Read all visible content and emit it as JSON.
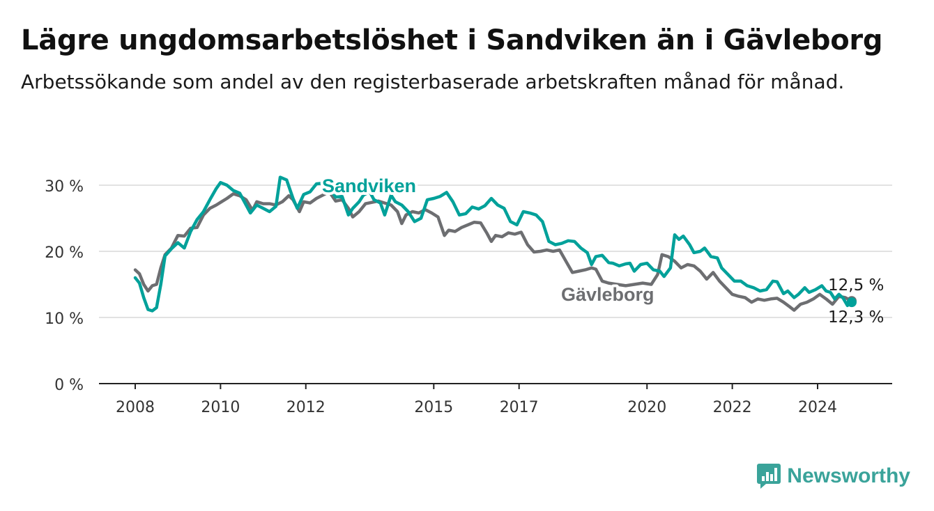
{
  "title": "Lägre ungdomsarbetslöshet i Sandviken än i Gävleborg",
  "subtitle": "Arbetssökande som andel av den registerbaserade arbetskraften månad för månad.",
  "brand": {
    "name": "Newsworthy",
    "color": "#3aa39a",
    "icon": "newsworthy-logo-icon"
  },
  "chart_data": {
    "type": "line",
    "ylim": [
      0,
      30
    ],
    "xlim": [
      2008,
      2025.7
    ],
    "y_ticks": [
      {
        "value": 0,
        "label": "0 %"
      },
      {
        "value": 10,
        "label": "10 %"
      },
      {
        "value": 20,
        "label": "20 %"
      },
      {
        "value": 30,
        "label": "30 %"
      }
    ],
    "x_ticks": [
      {
        "value": 2008,
        "label": "2008"
      },
      {
        "value": 2010,
        "label": "2010"
      },
      {
        "value": 2012,
        "label": "2012"
      },
      {
        "value": 2015,
        "label": "2015"
      },
      {
        "value": 2017,
        "label": "2017"
      },
      {
        "value": 2020,
        "label": "2020"
      },
      {
        "value": 2022,
        "label": "2022"
      },
      {
        "value": 2024,
        "label": "2024"
      }
    ],
    "grid": true,
    "series": [
      {
        "name": "Gävleborg",
        "color": "#6d6e71",
        "end_label": "12,5 %",
        "points": [
          [
            2008.0,
            17.2
          ],
          [
            2008.1,
            16.6
          ],
          [
            2008.2,
            15.0
          ],
          [
            2008.3,
            14.0
          ],
          [
            2008.4,
            14.8
          ],
          [
            2008.5,
            15.0
          ],
          [
            2008.6,
            17.5
          ],
          [
            2008.7,
            19.5
          ],
          [
            2008.85,
            20.5
          ],
          [
            2009.0,
            22.4
          ],
          [
            2009.15,
            22.3
          ],
          [
            2009.3,
            23.5
          ],
          [
            2009.45,
            23.6
          ],
          [
            2009.6,
            25.5
          ],
          [
            2009.75,
            26.5
          ],
          [
            2009.9,
            27.0
          ],
          [
            2010.0,
            27.4
          ],
          [
            2010.15,
            28.0
          ],
          [
            2010.3,
            28.7
          ],
          [
            2010.45,
            28.4
          ],
          [
            2010.6,
            27.8
          ],
          [
            2010.75,
            26.2
          ],
          [
            2010.85,
            27.5
          ],
          [
            2011.0,
            27.2
          ],
          [
            2011.15,
            27.2
          ],
          [
            2011.3,
            27.0
          ],
          [
            2011.45,
            27.5
          ],
          [
            2011.6,
            28.4
          ],
          [
            2011.7,
            27.8
          ],
          [
            2011.85,
            26.0
          ],
          [
            2011.95,
            27.5
          ],
          [
            2012.1,
            27.3
          ],
          [
            2012.25,
            28.0
          ],
          [
            2012.4,
            28.5
          ],
          [
            2012.55,
            29.0
          ],
          [
            2012.7,
            27.6
          ],
          [
            2012.85,
            27.8
          ],
          [
            2013.0,
            26.5
          ],
          [
            2013.1,
            25.2
          ],
          [
            2013.25,
            26.0
          ],
          [
            2013.4,
            27.2
          ],
          [
            2013.55,
            27.4
          ],
          [
            2013.7,
            27.6
          ],
          [
            2013.85,
            27.3
          ],
          [
            2014.0,
            27.0
          ],
          [
            2014.15,
            26.0
          ],
          [
            2014.25,
            24.2
          ],
          [
            2014.35,
            25.5
          ],
          [
            2014.5,
            26.0
          ],
          [
            2014.65,
            25.8
          ],
          [
            2014.8,
            26.3
          ],
          [
            2014.95,
            25.8
          ],
          [
            2015.1,
            25.2
          ],
          [
            2015.25,
            22.4
          ],
          [
            2015.35,
            23.2
          ],
          [
            2015.5,
            23.0
          ],
          [
            2015.65,
            23.6
          ],
          [
            2015.8,
            24.0
          ],
          [
            2015.95,
            24.4
          ],
          [
            2016.1,
            24.3
          ],
          [
            2016.25,
            22.7
          ],
          [
            2016.35,
            21.5
          ],
          [
            2016.45,
            22.4
          ],
          [
            2016.6,
            22.2
          ],
          [
            2016.75,
            22.8
          ],
          [
            2016.9,
            22.6
          ],
          [
            2017.05,
            22.9
          ],
          [
            2017.2,
            21.0
          ],
          [
            2017.35,
            19.9
          ],
          [
            2017.5,
            20.0
          ],
          [
            2017.65,
            20.2
          ],
          [
            2017.8,
            20.0
          ],
          [
            2017.95,
            20.2
          ],
          [
            2018.1,
            18.5
          ],
          [
            2018.25,
            16.8
          ],
          [
            2018.4,
            17.0
          ],
          [
            2018.55,
            17.2
          ],
          [
            2018.7,
            17.5
          ],
          [
            2018.8,
            17.3
          ],
          [
            2018.95,
            15.5
          ],
          [
            2019.1,
            15.2
          ],
          [
            2019.3,
            15.0
          ],
          [
            2019.5,
            14.8
          ],
          [
            2019.7,
            15.0
          ],
          [
            2019.9,
            15.2
          ],
          [
            2020.1,
            15.0
          ],
          [
            2020.25,
            16.5
          ],
          [
            2020.35,
            19.5
          ],
          [
            2020.5,
            19.2
          ],
          [
            2020.65,
            18.5
          ],
          [
            2020.8,
            17.5
          ],
          [
            2020.95,
            18.0
          ],
          [
            2021.1,
            17.8
          ],
          [
            2021.25,
            17.0
          ],
          [
            2021.4,
            15.8
          ],
          [
            2021.55,
            16.8
          ],
          [
            2021.7,
            15.5
          ],
          [
            2021.85,
            14.5
          ],
          [
            2022.0,
            13.5
          ],
          [
            2022.15,
            13.2
          ],
          [
            2022.3,
            13.0
          ],
          [
            2022.45,
            12.3
          ],
          [
            2022.6,
            12.8
          ],
          [
            2022.75,
            12.6
          ],
          [
            2022.9,
            12.8
          ],
          [
            2023.05,
            12.9
          ],
          [
            2023.2,
            12.3
          ],
          [
            2023.35,
            11.6
          ],
          [
            2023.45,
            11.1
          ],
          [
            2023.6,
            12.0
          ],
          [
            2023.75,
            12.3
          ],
          [
            2023.9,
            12.8
          ],
          [
            2024.05,
            13.5
          ],
          [
            2024.2,
            12.8
          ],
          [
            2024.35,
            12.0
          ],
          [
            2024.5,
            13.2
          ],
          [
            2024.65,
            13.0
          ],
          [
            2024.8,
            12.5
          ]
        ]
      },
      {
        "name": "Sandviken",
        "color": "#00a19a",
        "end_label": "12,3 %",
        "points": [
          [
            2008.0,
            16.0
          ],
          [
            2008.1,
            15.2
          ],
          [
            2008.2,
            13.0
          ],
          [
            2008.3,
            11.2
          ],
          [
            2008.4,
            11.0
          ],
          [
            2008.5,
            11.5
          ],
          [
            2008.6,
            15.0
          ],
          [
            2008.7,
            19.3
          ],
          [
            2008.85,
            20.4
          ],
          [
            2009.0,
            21.3
          ],
          [
            2009.15,
            20.5
          ],
          [
            2009.3,
            23.0
          ],
          [
            2009.45,
            24.8
          ],
          [
            2009.6,
            26.0
          ],
          [
            2009.75,
            27.8
          ],
          [
            2009.9,
            29.5
          ],
          [
            2010.0,
            30.4
          ],
          [
            2010.15,
            30.0
          ],
          [
            2010.3,
            29.2
          ],
          [
            2010.45,
            28.8
          ],
          [
            2010.6,
            27.0
          ],
          [
            2010.7,
            25.8
          ],
          [
            2010.85,
            27.0
          ],
          [
            2011.0,
            26.5
          ],
          [
            2011.15,
            26.0
          ],
          [
            2011.3,
            26.8
          ],
          [
            2011.4,
            31.2
          ],
          [
            2011.55,
            30.8
          ],
          [
            2011.7,
            28.0
          ],
          [
            2011.8,
            26.5
          ],
          [
            2011.95,
            28.6
          ],
          [
            2012.1,
            29.0
          ],
          [
            2012.25,
            30.2
          ],
          [
            2012.4,
            30.3
          ],
          [
            2012.55,
            29.6
          ],
          [
            2012.7,
            28.2
          ],
          [
            2012.85,
            28.3
          ],
          [
            2013.0,
            25.5
          ],
          [
            2013.1,
            26.5
          ],
          [
            2013.25,
            27.5
          ],
          [
            2013.35,
            28.5
          ],
          [
            2013.5,
            29.0
          ],
          [
            2013.6,
            27.8
          ],
          [
            2013.75,
            27.3
          ],
          [
            2013.85,
            25.5
          ],
          [
            2014.0,
            28.5
          ],
          [
            2014.1,
            27.5
          ],
          [
            2014.25,
            27.0
          ],
          [
            2014.4,
            26.0
          ],
          [
            2014.55,
            24.5
          ],
          [
            2014.7,
            25.0
          ],
          [
            2014.85,
            27.8
          ],
          [
            2015.0,
            28.0
          ],
          [
            2015.15,
            28.3
          ],
          [
            2015.3,
            28.9
          ],
          [
            2015.45,
            27.5
          ],
          [
            2015.6,
            25.5
          ],
          [
            2015.75,
            25.7
          ],
          [
            2015.9,
            26.7
          ],
          [
            2016.05,
            26.4
          ],
          [
            2016.2,
            26.9
          ],
          [
            2016.35,
            28.0
          ],
          [
            2016.5,
            27.0
          ],
          [
            2016.65,
            26.5
          ],
          [
            2016.8,
            24.5
          ],
          [
            2016.95,
            24.0
          ],
          [
            2017.1,
            26.0
          ],
          [
            2017.25,
            25.8
          ],
          [
            2017.4,
            25.5
          ],
          [
            2017.55,
            24.5
          ],
          [
            2017.7,
            21.5
          ],
          [
            2017.85,
            21.0
          ],
          [
            2018.0,
            21.2
          ],
          [
            2018.15,
            21.6
          ],
          [
            2018.3,
            21.5
          ],
          [
            2018.45,
            20.5
          ],
          [
            2018.6,
            19.8
          ],
          [
            2018.7,
            18.0
          ],
          [
            2018.8,
            19.2
          ],
          [
            2018.95,
            19.4
          ],
          [
            2019.1,
            18.3
          ],
          [
            2019.2,
            18.2
          ],
          [
            2019.35,
            17.8
          ],
          [
            2019.5,
            18.1
          ],
          [
            2019.6,
            18.2
          ],
          [
            2019.7,
            17.0
          ],
          [
            2019.85,
            18.0
          ],
          [
            2020.0,
            18.2
          ],
          [
            2020.15,
            17.2
          ],
          [
            2020.3,
            17.0
          ],
          [
            2020.4,
            16.2
          ],
          [
            2020.55,
            17.5
          ],
          [
            2020.65,
            22.5
          ],
          [
            2020.75,
            21.8
          ],
          [
            2020.85,
            22.3
          ],
          [
            2021.0,
            21.0
          ],
          [
            2021.1,
            19.8
          ],
          [
            2021.25,
            20.0
          ],
          [
            2021.35,
            20.5
          ],
          [
            2021.5,
            19.2
          ],
          [
            2021.65,
            19.0
          ],
          [
            2021.75,
            17.5
          ],
          [
            2021.9,
            16.5
          ],
          [
            2022.05,
            15.5
          ],
          [
            2022.2,
            15.5
          ],
          [
            2022.35,
            14.8
          ],
          [
            2022.5,
            14.5
          ],
          [
            2022.65,
            14.0
          ],
          [
            2022.8,
            14.2
          ],
          [
            2022.95,
            15.5
          ],
          [
            2023.05,
            15.4
          ],
          [
            2023.2,
            13.6
          ],
          [
            2023.3,
            14.0
          ],
          [
            2023.45,
            13.0
          ],
          [
            2023.55,
            13.5
          ],
          [
            2023.7,
            14.5
          ],
          [
            2023.8,
            13.8
          ],
          [
            2023.95,
            14.2
          ],
          [
            2024.1,
            14.8
          ],
          [
            2024.2,
            14.0
          ],
          [
            2024.3,
            13.8
          ],
          [
            2024.4,
            12.8
          ],
          [
            2024.5,
            13.5
          ],
          [
            2024.6,
            12.9
          ],
          [
            2024.7,
            11.8
          ],
          [
            2024.8,
            12.3
          ]
        ]
      }
    ],
    "annotations": [
      {
        "text": "Sandviken",
        "series": "Sandviken"
      },
      {
        "text": "Gävleborg",
        "series": "Gävleborg"
      }
    ]
  }
}
